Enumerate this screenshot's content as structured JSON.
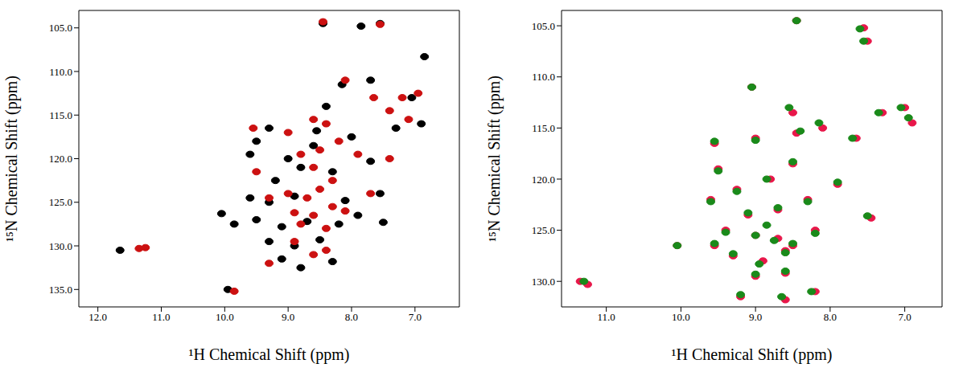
{
  "chart_data": [
    {
      "type": "scatter",
      "x_label": "¹H Chemical Shift (ppm)",
      "y_label": "¹⁵N Chemical Shift (ppm)",
      "marker": "circle",
      "grid": false,
      "xlim": [
        12.3,
        6.3
      ],
      "ylim": [
        137,
        103
      ],
      "xticks": [
        {
          "value": 12,
          "label": "12.0"
        },
        {
          "value": 11,
          "label": "11.0"
        },
        {
          "value": 10,
          "label": "10.0"
        },
        {
          "value": 9,
          "label": "9.0"
        },
        {
          "value": 8,
          "label": "8.0"
        },
        {
          "value": 7,
          "label": "7.0"
        }
      ],
      "yticks": [
        {
          "value": 105,
          "label": "105.0"
        },
        {
          "value": 110,
          "label": "110.0"
        },
        {
          "value": 115,
          "label": "115.0"
        },
        {
          "value": 120,
          "label": "120.0"
        },
        {
          "value": 125,
          "label": "125.0"
        },
        {
          "value": 130,
          "label": "130.0"
        },
        {
          "value": 135,
          "label": "135.0"
        }
      ],
      "series": [
        {
          "color": "#000000",
          "x": [
            11.65,
            9.95,
            10.05,
            8.45,
            7.85,
            7.55,
            6.85,
            9.5,
            9.3,
            8.55,
            8.15,
            7.7,
            7.05,
            6.9,
            9.6,
            9.0,
            8.8,
            8.3,
            7.7,
            9.2,
            9.6,
            9.3,
            8.9,
            8.1,
            7.55,
            9.5,
            9.1,
            8.7,
            8.2,
            7.9,
            9.3,
            8.9,
            8.5,
            9.1,
            8.8,
            8.3,
            7.5,
            8.6,
            8.0,
            7.3,
            9.85,
            8.4
          ],
          "y": [
            130.5,
            135.0,
            126.3,
            104.5,
            104.8,
            104.5,
            108.3,
            118.0,
            116.5,
            116.8,
            111.5,
            111.0,
            113.0,
            116.0,
            119.5,
            120.0,
            121.0,
            121.5,
            120.3,
            122.5,
            124.5,
            125.0,
            124.3,
            124.8,
            124.0,
            127.0,
            127.8,
            127.2,
            127.5,
            126.5,
            129.5,
            130.0,
            129.3,
            131.5,
            132.5,
            131.8,
            127.3,
            118.5,
            117.5,
            116.5,
            127.5,
            114.0
          ]
        },
        {
          "color": "#cc1111",
          "x": [
            11.35,
            11.25,
            9.85,
            8.45,
            7.55,
            8.1,
            7.65,
            7.4,
            7.2,
            6.95,
            9.55,
            9.0,
            8.6,
            8.4,
            8.5,
            8.8,
            8.6,
            8.3,
            8.5,
            8.7,
            9.0,
            9.3,
            8.3,
            8.6,
            8.8,
            8.4,
            8.1,
            8.9,
            8.6,
            8.4,
            7.7,
            7.4,
            7.1,
            9.5,
            9.3,
            8.9,
            8.2,
            7.9
          ],
          "y": [
            130.3,
            130.2,
            135.2,
            104.3,
            104.6,
            111.0,
            113.0,
            114.5,
            113.0,
            112.5,
            116.5,
            117.0,
            115.5,
            116.0,
            119.0,
            119.5,
            121.0,
            122.5,
            123.5,
            124.5,
            124.0,
            124.5,
            125.5,
            126.5,
            127.5,
            128.0,
            126.0,
            129.5,
            131.0,
            130.5,
            124.0,
            120.0,
            115.5,
            121.5,
            132.0,
            126.2,
            118.0,
            119.5
          ]
        }
      ]
    },
    {
      "type": "scatter",
      "x_label": "¹H Chemical Shift (ppm)",
      "y_label": "¹⁵N Chemical Shift (ppm)",
      "marker": "circle",
      "grid": false,
      "xlim": [
        11.6,
        6.5
      ],
      "ylim": [
        132.5,
        103.5
      ],
      "xticks": [
        {
          "value": 11,
          "label": "11.0"
        },
        {
          "value": 10,
          "label": "10.0"
        },
        {
          "value": 9,
          "label": "9.0"
        },
        {
          "value": 8,
          "label": "8.0"
        },
        {
          "value": 7,
          "label": "7.0"
        }
      ],
      "yticks": [
        {
          "value": 105,
          "label": "105.0"
        },
        {
          "value": 110,
          "label": "110.0"
        },
        {
          "value": 115,
          "label": "115.0"
        },
        {
          "value": 120,
          "label": "120.0"
        },
        {
          "value": 125,
          "label": "125.0"
        },
        {
          "value": 130,
          "label": "130.0"
        }
      ],
      "series": [
        {
          "color": "#e8174a",
          "x": [
            11.35,
            11.25,
            8.45,
            7.55,
            7.5,
            9.05,
            8.5,
            7.65,
            7.3,
            7.0,
            6.9,
            9.55,
            9.0,
            8.45,
            8.1,
            9.5,
            9.25,
            8.8,
            8.5,
            7.9,
            9.6,
            9.1,
            8.7,
            8.3,
            7.45,
            9.4,
            9.0,
            8.7,
            8.5,
            8.2,
            9.3,
            8.9,
            8.6,
            9.0,
            8.6,
            9.2,
            8.6,
            8.2,
            10.05,
            9.55
          ],
          "y": [
            130.0,
            130.3,
            104.5,
            105.2,
            106.5,
            111.0,
            113.5,
            116.0,
            113.5,
            113.0,
            114.5,
            116.5,
            116.0,
            115.5,
            115.0,
            119.0,
            121.0,
            120.0,
            118.5,
            120.5,
            122.0,
            123.5,
            123.0,
            122.0,
            123.8,
            125.0,
            125.5,
            125.8,
            126.5,
            125.0,
            127.5,
            128.0,
            127.0,
            129.5,
            129.2,
            131.5,
            131.8,
            131.0,
            126.5,
            126.5
          ]
        },
        {
          "color": "#1a8a1a",
          "x": [
            11.3,
            8.45,
            7.6,
            7.55,
            9.05,
            8.55,
            7.7,
            7.35,
            7.05,
            6.95,
            9.55,
            9.0,
            8.4,
            8.15,
            9.5,
            9.25,
            8.85,
            8.5,
            7.9,
            9.6,
            9.1,
            8.7,
            8.3,
            7.5,
            9.4,
            9.0,
            8.75,
            8.5,
            8.2,
            9.3,
            8.95,
            8.6,
            9.0,
            8.6,
            9.2,
            8.65,
            8.25,
            10.05,
            9.55,
            8.85
          ],
          "y": [
            130.0,
            104.5,
            105.3,
            106.5,
            111.0,
            113.0,
            116.0,
            113.5,
            113.0,
            114.0,
            116.3,
            116.2,
            115.3,
            114.5,
            119.2,
            121.2,
            120.0,
            118.3,
            120.3,
            122.2,
            123.3,
            122.8,
            122.2,
            123.6,
            125.2,
            125.5,
            126.0,
            126.3,
            125.3,
            127.3,
            128.3,
            127.2,
            129.3,
            129.0,
            131.3,
            131.5,
            131.0,
            126.5,
            126.3,
            124.5
          ]
        }
      ]
    }
  ]
}
